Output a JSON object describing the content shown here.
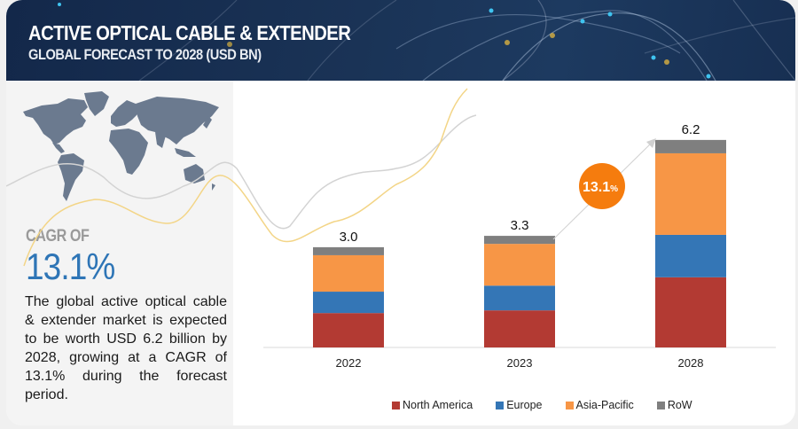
{
  "header": {
    "title": "ACTIVE OPTICAL CABLE & EXTENDER",
    "subtitle": "GLOBAL FORECAST TO 2028 (USD BN)"
  },
  "left_panel": {
    "map_icon": "world-map",
    "cagr_label": "CAGR OF",
    "cagr_value": "13.1%",
    "description": "The global active optical cable & extender market is expected to be worth USD 6.2 billion by 2028, growing at a CAGR of 13.1% during the forecast period."
  },
  "colors": {
    "north_america": "#b33a33",
    "europe": "#3476b6",
    "asia_pacific": "#f79646",
    "row": "#7f7f7f",
    "cagr_bubble": "#f57c0e",
    "cagr_text": "#2e75b6"
  },
  "chart_data": {
    "type": "bar",
    "stacked": true,
    "title": "Active Optical Cable & Extender Global Forecast to 2028 (USD BN)",
    "xlabel": "",
    "ylabel": "",
    "categories": [
      "2022",
      "2023",
      "2028"
    ],
    "totals": [
      "3.0",
      "3.3",
      "6.2"
    ],
    "series": [
      {
        "name": "North America",
        "values": [
          1.03,
          1.11,
          2.1
        ]
      },
      {
        "name": "Europe",
        "values": [
          0.64,
          0.74,
          1.27
        ]
      },
      {
        "name": "Asia-Pacific",
        "values": [
          1.09,
          1.25,
          2.44
        ]
      },
      {
        "name": "RoW",
        "values": [
          0.24,
          0.24,
          0.4
        ]
      }
    ],
    "ylim": [
      0,
      6.2
    ],
    "grid": false,
    "legend_position": "bottom",
    "annotation": {
      "text": "13.1",
      "suffix": "%",
      "from": "2023",
      "to": "2028"
    }
  }
}
